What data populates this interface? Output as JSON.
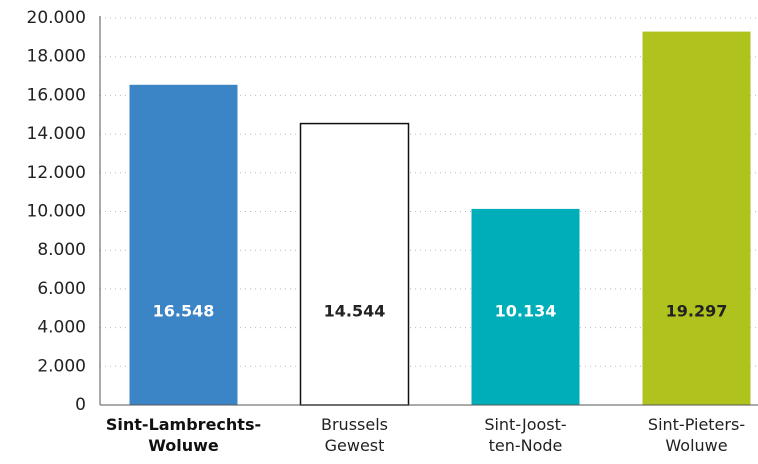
{
  "chart_data": {
    "type": "bar",
    "categories": [
      "Sint-Lambrechts-\nWoluwe",
      "Brussels\nGewest",
      "Sint-Joost-\nten-Node",
      "Sint-Pieters-\nWoluwe"
    ],
    "values": [
      16548,
      14544,
      10134,
      19297
    ],
    "value_labels": [
      "16.548",
      "14.544",
      "10.134",
      "19.297"
    ],
    "colors": [
      "#3b84c5",
      "#ffffff",
      "#00aeb9",
      "#afc21d"
    ],
    "ylim": [
      0,
      20000
    ],
    "yticks": [
      0,
      {
        "value": 2000,
        "label": "2.000"
      },
      {
        "value": 4000,
        "label": "4.000"
      },
      {
        "value": 6000,
        "label": "6.000"
      },
      {
        "value": 8000,
        "label": "8.000"
      },
      {
        "value": 10000,
        "label": "10.000"
      },
      {
        "value": 12000,
        "label": "12.000"
      },
      {
        "value": 14000,
        "label": "14.000"
      },
      {
        "value": 16000,
        "label": "16.000"
      },
      {
        "value": 18000,
        "label": "18.000"
      },
      {
        "value": 20000,
        "label": "20.000"
      }
    ],
    "grid": true
  }
}
